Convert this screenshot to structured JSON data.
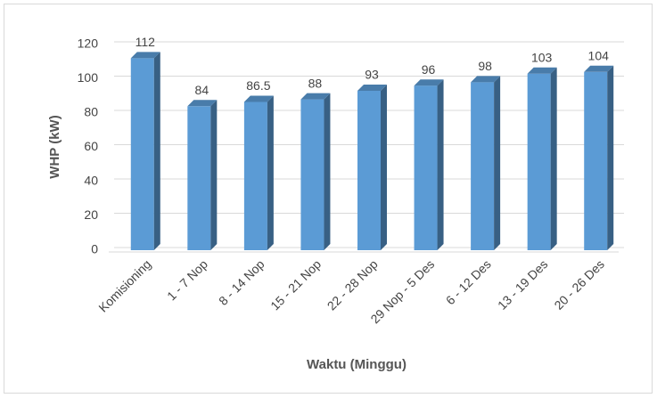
{
  "chart_data": {
    "type": "bar",
    "x_label": "Waktu (Minggu)",
    "y_label": "WHP (kW)",
    "categories": [
      "Komisioning",
      "1 - 7 Nop",
      "8 - 14 Nop",
      "15 - 21 Nop",
      "22 - 28 Nop",
      "29 Nop - 5 Des",
      "6 - 12 Des",
      "13 - 19 Des",
      "20 - 26 Des"
    ],
    "values": [
      112,
      84,
      86.5,
      88,
      93,
      96,
      98,
      103,
      104
    ],
    "color": "#5b9bd5",
    "ylim": [
      0,
      120
    ],
    "yticks": [
      0,
      20,
      40,
      60,
      80,
      100,
      120
    ],
    "grid": true
  }
}
